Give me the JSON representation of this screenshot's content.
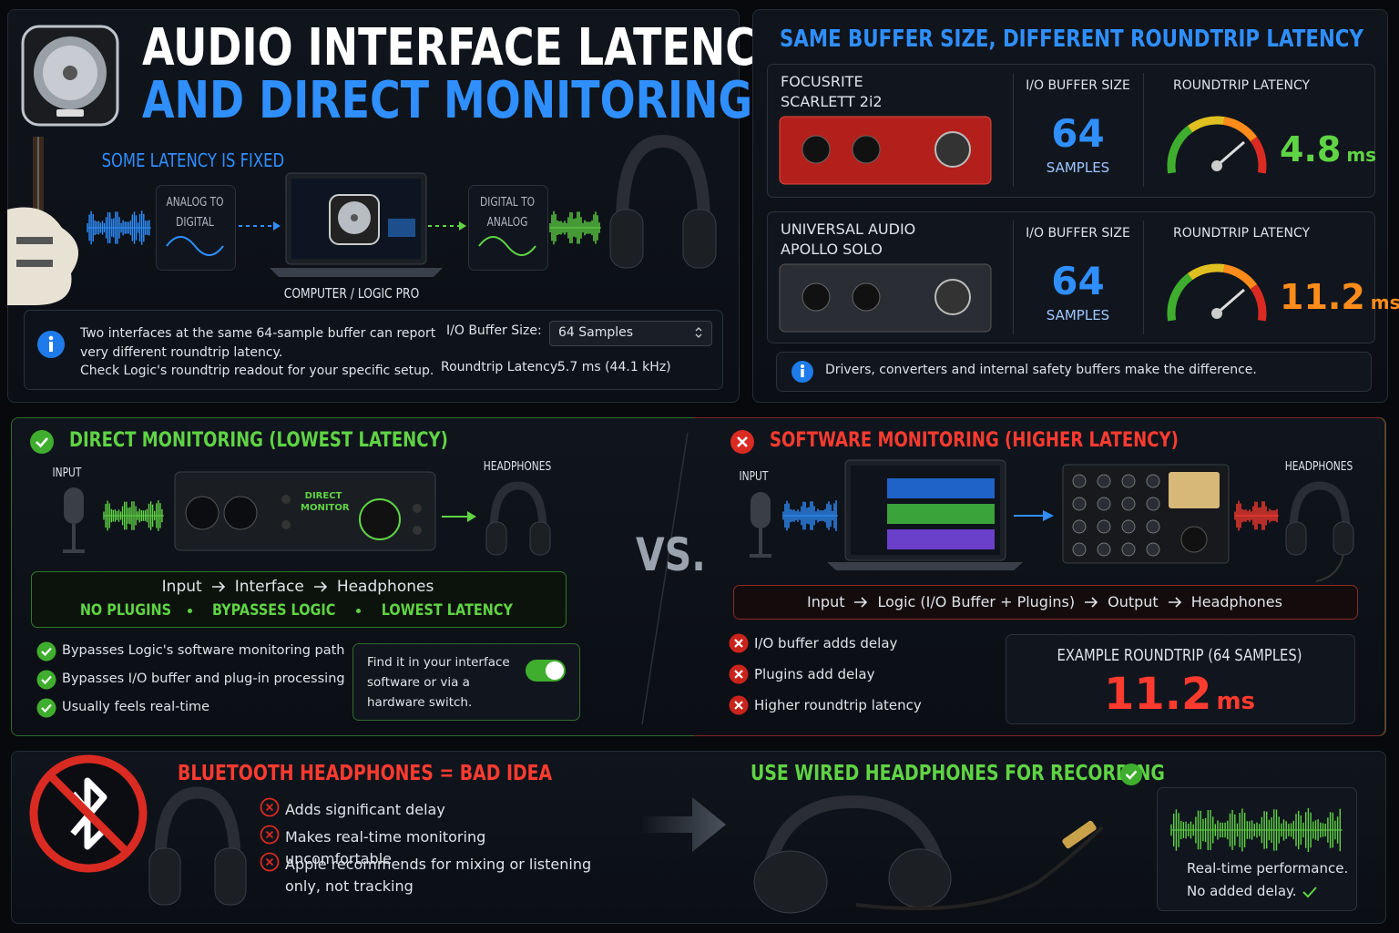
{
  "header": {
    "title_line1": "AUDIO INTERFACE LATENCY",
    "title_line2": "AND DIRECT MONITORING"
  },
  "fixed_latency": {
    "title": "SOME LATENCY IS FIXED",
    "adc": "ANALOG TO DIGITAL",
    "computer": "COMPUTER / LOGIC PRO",
    "dac": "DIGITAL TO ANALOG"
  },
  "info": {
    "lines": [
      "Two interfaces at the same 64-sample buffer can report",
      "very different roundtrip latency.",
      "Check Logic's roundtrip readout for your specific setup."
    ],
    "buffer_label": "I/O Buffer Size:",
    "buffer_value": "64 Samples",
    "latency_label": "Roundtrip Latency:",
    "latency_value": "5.7 ms (44.1 kHz)"
  },
  "comparison": {
    "title": "SAME BUFFER SIZE, DIFFERENT ROUNDTRIP LATENCY",
    "interfaces": [
      {
        "name": [
          "FOCUSRITE",
          "SCARLETT 2i2"
        ],
        "buffer_label": "I/O BUFFER SIZE",
        "buffer": 64,
        "buffer_unit": "SAMPLES",
        "latency_label": "ROUNDTRIP LATENCY",
        "latency": 4.8,
        "latency_unit": "ms"
      },
      {
        "name": [
          "UNIVERSAL AUDIO",
          "APOLLO SOLO"
        ],
        "buffer_label": "I/O BUFFER SIZE",
        "buffer": 64,
        "buffer_unit": "SAMPLES",
        "latency_label": "ROUNDTRIP LATENCY",
        "latency": 11.2,
        "latency_unit": "ms"
      }
    ],
    "note": "Drivers, converters and internal safety buffers make the difference."
  },
  "direct": {
    "title": "DIRECT MONITORING (LOWEST LATENCY)",
    "input": "INPUT",
    "device_label": "DIRECT MONITOR",
    "headphones": "HEADPHONES",
    "flow": [
      "Input",
      "Interface",
      "Headphones"
    ],
    "tags": [
      "NO PLUGINS",
      "BYPASSES LOGIC",
      "LOWEST LATENCY"
    ],
    "bullets": [
      "Bypasses Logic's software monitoring path",
      "Bypasses I/O buffer and plug-in processing",
      "Usually feels real-time"
    ],
    "tip": "Find it in your interface software or via a hardware switch."
  },
  "vs": "VS.",
  "software": {
    "title": "SOFTWARE MONITORING (HIGHER LATENCY)",
    "input": "INPUT",
    "headphones": "HEADPHONES",
    "flow": [
      "Input",
      "Logic (I/O Buffer + Plugins)",
      "Output",
      "Headphones"
    ],
    "bullets": [
      "I/O buffer adds delay",
      "Plugins add delay",
      "Higher roundtrip latency"
    ],
    "example_title": "EXAMPLE ROUNDTRIP (64 SAMPLES)",
    "example_value": 11.2,
    "example_unit": "ms"
  },
  "bluetooth": {
    "title": "BLUETOOTH HEADPHONES = BAD IDEA",
    "bullets": [
      "Adds significant delay",
      "Makes real-time monitoring uncomfortable",
      "Apple recommends for mixing or listening only, not tracking"
    ]
  },
  "wired": {
    "title": "USE WIRED HEADPHONES FOR RECORDING",
    "box_lines": [
      "Real-time performance.",
      "No added delay."
    ]
  }
}
